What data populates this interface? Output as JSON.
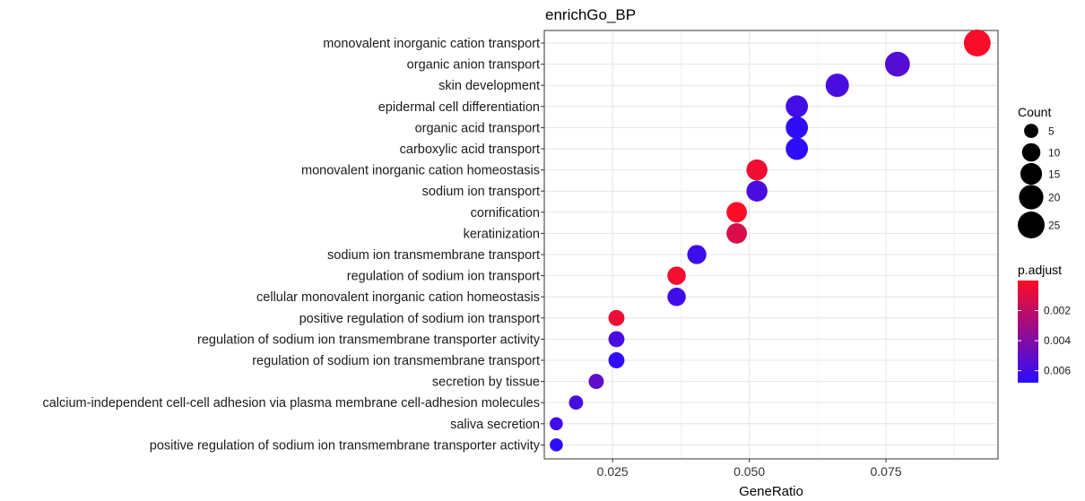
{
  "chart_data": {
    "type": "scatter",
    "title": "enrichGo_BP",
    "xlabel": "GeneRatio",
    "ylabel": "",
    "xlim": [
      0.0125,
      0.0955
    ],
    "xticks": [
      0.025,
      0.05,
      0.075
    ],
    "xtick_labels": [
      "0.025",
      "0.050",
      "0.075"
    ],
    "grid": true,
    "categories": [
      "monovalent inorganic cation transport",
      "organic anion transport",
      "skin development",
      "epidermal cell differentiation",
      "organic acid transport",
      "carboxylic acid transport",
      "monovalent inorganic cation homeostasis",
      "sodium ion transport",
      "cornification",
      "keratinization",
      "sodium ion transmembrane transport",
      "regulation of sodium ion transport",
      "cellular monovalent inorganic cation homeostasis",
      "positive regulation of sodium ion transport",
      "regulation of sodium ion transmembrane transporter activity",
      "regulation of sodium ion transmembrane transport",
      "secretion by tissue",
      "calcium-independent cell-cell adhesion via plasma membrane cell-adhesion molecules",
      "saliva secretion",
      "positive regulation of sodium ion transmembrane transporter activity"
    ],
    "x": [
      0.0917,
      0.0771,
      0.0661,
      0.0587,
      0.0587,
      0.0587,
      0.0514,
      0.0514,
      0.0477,
      0.0477,
      0.0404,
      0.0367,
      0.0367,
      0.0257,
      0.0257,
      0.0257,
      0.022,
      0.0183,
      0.0147,
      0.0147
    ],
    "count": [
      25,
      21,
      18,
      16,
      16,
      16,
      14,
      14,
      13,
      13,
      11,
      10,
      10,
      7,
      7,
      7,
      6,
      5,
      4,
      4
    ],
    "p_adjust": [
      0.0002,
      0.0055,
      0.0058,
      0.006,
      0.0066,
      0.0067,
      0.0005,
      0.0058,
      0.0001,
      0.0012,
      0.0062,
      0.0004,
      0.0061,
      0.0006,
      0.0058,
      0.0067,
      0.0051,
      0.0059,
      0.0061,
      0.0067
    ],
    "size_legend": {
      "title": "Count",
      "values": [
        5,
        10,
        15,
        20,
        25
      ],
      "labels": [
        "5",
        "10",
        "15",
        "20",
        "25"
      ]
    },
    "color_legend": {
      "title": "p.adjust",
      "range": [
        0.0,
        0.0068
      ],
      "ticks": [
        0.002,
        0.004,
        0.006
      ],
      "tick_labels": [
        "0.002",
        "0.004",
        "0.006"
      ],
      "low_color": "#ff0d24",
      "high_color": "#2a0dff"
    },
    "legend_position": "right"
  }
}
